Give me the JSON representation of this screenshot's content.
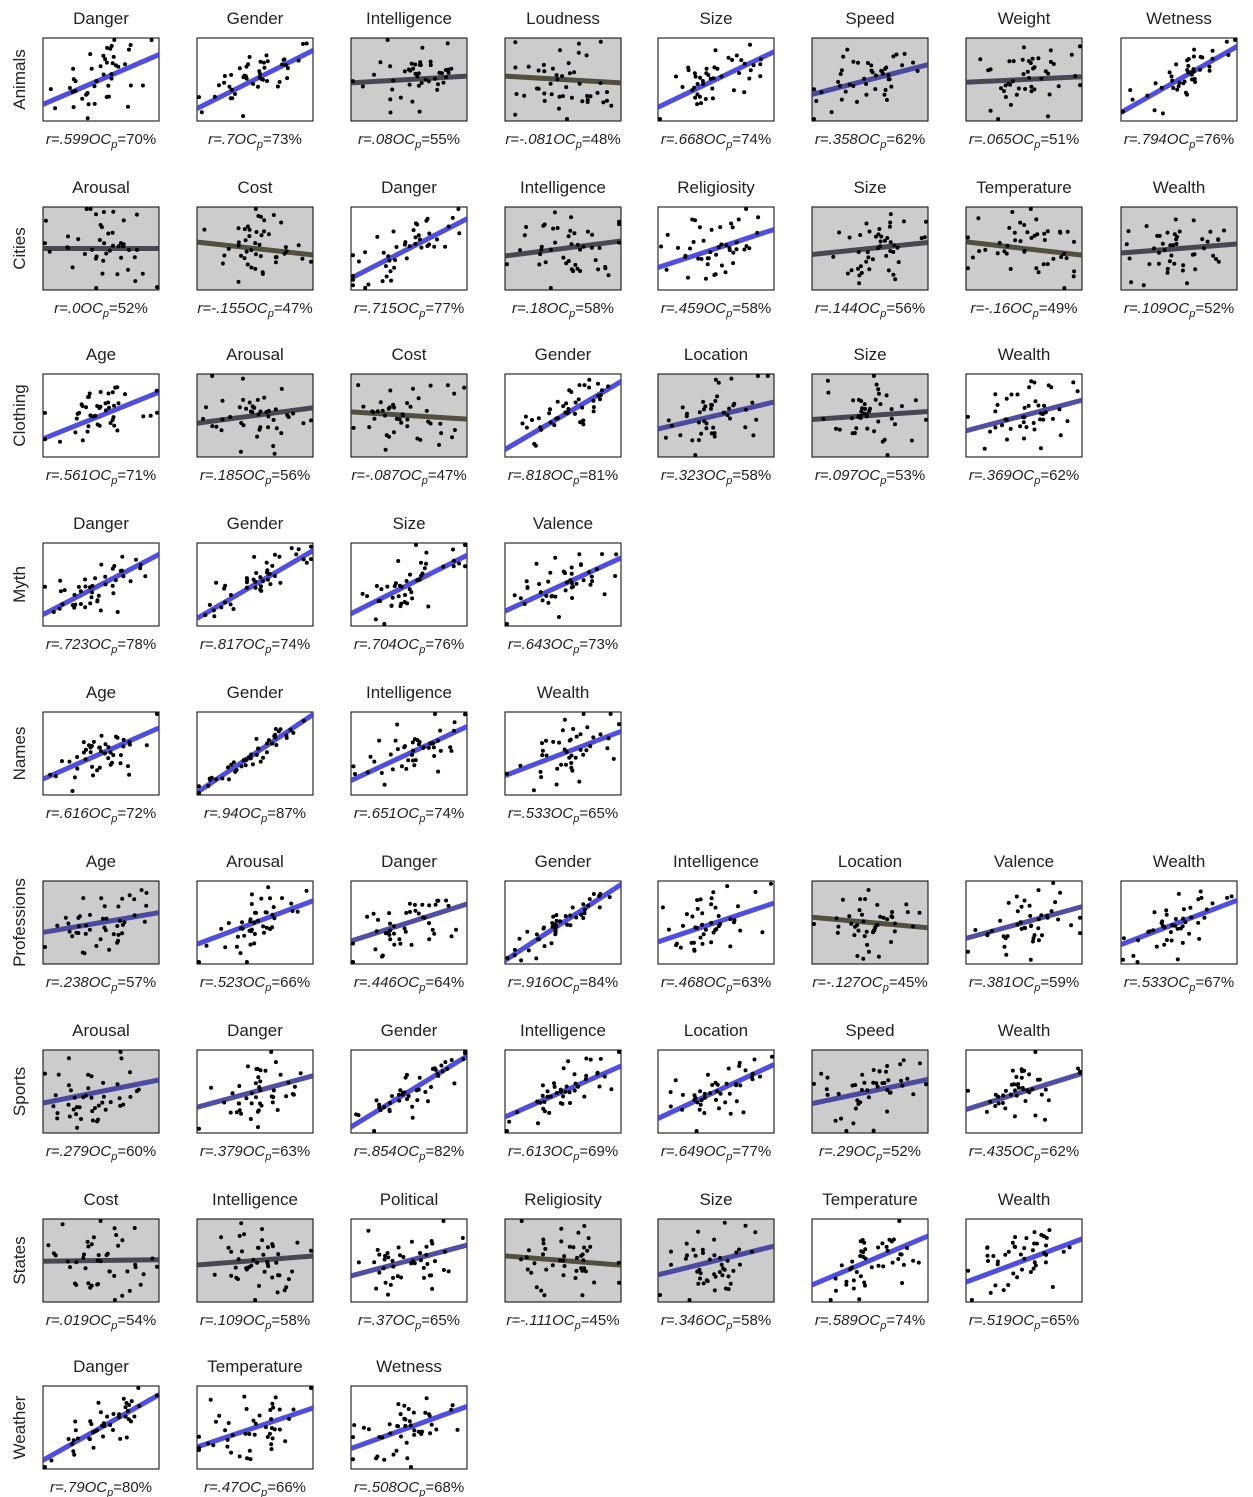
{
  "chart_data": {
    "type": "scatter",
    "rows": [
      {
        "domain": "Animals",
        "panels": [
          {
            "title": "Danger",
            "r": "r=.599",
            "oc": "OC",
            "oc_sub": "p",
            "oc_val": "=70%",
            "r_value": 0.599,
            "oc_percent": 70
          },
          {
            "title": "Gender",
            "r": "r=.7",
            "oc": "OC",
            "oc_sub": "p",
            "oc_val": "=73%",
            "r_value": 0.7,
            "oc_percent": 73
          },
          {
            "title": "Intelligence",
            "r": "r=.08",
            "oc": "OC",
            "oc_sub": "p",
            "oc_val": "=55%",
            "r_value": 0.08,
            "oc_percent": 55
          },
          {
            "title": "Loudness",
            "r": "r=-.081",
            "oc": "OC",
            "oc_sub": "p",
            "oc_val": "=48%",
            "r_value": -0.081,
            "oc_percent": 48
          },
          {
            "title": "Size",
            "r": "r=.668",
            "oc": "OC",
            "oc_sub": "p",
            "oc_val": "=74%",
            "r_value": 0.668,
            "oc_percent": 74
          },
          {
            "title": "Speed",
            "r": "r=.358",
            "oc": "OC",
            "oc_sub": "p",
            "oc_val": "=62%",
            "r_value": 0.358,
            "oc_percent": 62
          },
          {
            "title": "Weight",
            "r": "r=.065",
            "oc": "OC",
            "oc_sub": "p",
            "oc_val": "=51%",
            "r_value": 0.065,
            "oc_percent": 51
          },
          {
            "title": "Wetness",
            "r": "r=.794",
            "oc": "OC",
            "oc_sub": "p",
            "oc_val": "=76%",
            "r_value": 0.794,
            "oc_percent": 76
          }
        ]
      },
      {
        "domain": "Cities",
        "panels": [
          {
            "title": "Arousal",
            "r": "r=.0",
            "oc": "OC",
            "oc_sub": "p",
            "oc_val": "=52%",
            "r_value": 0.0,
            "oc_percent": 52
          },
          {
            "title": "Cost",
            "r": "r=-.155",
            "oc": "OC",
            "oc_sub": "p",
            "oc_val": "=47%",
            "r_value": -0.155,
            "oc_percent": 47
          },
          {
            "title": "Danger",
            "r": "r=.715",
            "oc": "OC",
            "oc_sub": "p",
            "oc_val": "=77%",
            "r_value": 0.715,
            "oc_percent": 77
          },
          {
            "title": "Intelligence",
            "r": "r=.18",
            "oc": "OC",
            "oc_sub": "p",
            "oc_val": "=58%",
            "r_value": 0.18,
            "oc_percent": 58
          },
          {
            "title": "Religiosity",
            "r": "r=.459",
            "oc": "OC",
            "oc_sub": "p",
            "oc_val": "=58%",
            "r_value": 0.459,
            "oc_percent": 58
          },
          {
            "title": "Size",
            "r": "r=.144",
            "oc": "OC",
            "oc_sub": "p",
            "oc_val": "=56%",
            "r_value": 0.144,
            "oc_percent": 56
          },
          {
            "title": "Temperature",
            "r": "r=-.16",
            "oc": "OC",
            "oc_sub": "p",
            "oc_val": "=49%",
            "r_value": -0.16,
            "oc_percent": 49
          },
          {
            "title": "Wealth",
            "r": "r=.109",
            "oc": "OC",
            "oc_sub": "p",
            "oc_val": "=52%",
            "r_value": 0.109,
            "oc_percent": 52
          }
        ]
      },
      {
        "domain": "Clothing",
        "panels": [
          {
            "title": "Age",
            "r": "r=.561",
            "oc": "OC",
            "oc_sub": "p",
            "oc_val": "=71%",
            "r_value": 0.561,
            "oc_percent": 71
          },
          {
            "title": "Arousal",
            "r": "r=.185",
            "oc": "OC",
            "oc_sub": "p",
            "oc_val": "=56%",
            "r_value": 0.185,
            "oc_percent": 56
          },
          {
            "title": "Cost",
            "r": "r=-.087",
            "oc": "OC",
            "oc_sub": "p",
            "oc_val": "=47%",
            "r_value": -0.087,
            "oc_percent": 47
          },
          {
            "title": "Gender",
            "r": "r=.818",
            "oc": "OC",
            "oc_sub": "p",
            "oc_val": "=81%",
            "r_value": 0.818,
            "oc_percent": 81
          },
          {
            "title": "Location",
            "r": "r=.323",
            "oc": "OC",
            "oc_sub": "p",
            "oc_val": "=58%",
            "r_value": 0.323,
            "oc_percent": 58
          },
          {
            "title": "Size",
            "r": "r=.097",
            "oc": "OC",
            "oc_sub": "p",
            "oc_val": "=53%",
            "r_value": 0.097,
            "oc_percent": 53
          },
          {
            "title": "Wealth",
            "r": "r=.369",
            "oc": "OC",
            "oc_sub": "p",
            "oc_val": "=62%",
            "r_value": 0.369,
            "oc_percent": 62
          }
        ]
      },
      {
        "domain": "Myth",
        "panels": [
          {
            "title": "Danger",
            "r": "r=.723",
            "oc": "OC",
            "oc_sub": "p",
            "oc_val": "=78%",
            "r_value": 0.723,
            "oc_percent": 78
          },
          {
            "title": "Gender",
            "r": "r=.817",
            "oc": "OC",
            "oc_sub": "p",
            "oc_val": "=74%",
            "r_value": 0.817,
            "oc_percent": 74
          },
          {
            "title": "Size",
            "r": "r=.704",
            "oc": "OC",
            "oc_sub": "p",
            "oc_val": "=76%",
            "r_value": 0.704,
            "oc_percent": 76
          },
          {
            "title": "Valence",
            "r": "r=.643",
            "oc": "OC",
            "oc_sub": "p",
            "oc_val": "=73%",
            "r_value": 0.643,
            "oc_percent": 73
          }
        ]
      },
      {
        "domain": "Names",
        "panels": [
          {
            "title": "Age",
            "r": "r=.616",
            "oc": "OC",
            "oc_sub": "p",
            "oc_val": "=72%",
            "r_value": 0.616,
            "oc_percent": 72
          },
          {
            "title": "Gender",
            "r": "r=.94",
            "oc": "OC",
            "oc_sub": "p",
            "oc_val": "=87%",
            "r_value": 0.94,
            "oc_percent": 87
          },
          {
            "title": "Intelligence",
            "r": "r=.651",
            "oc": "OC",
            "oc_sub": "p",
            "oc_val": "=74%",
            "r_value": 0.651,
            "oc_percent": 74
          },
          {
            "title": "Wealth",
            "r": "r=.533",
            "oc": "OC",
            "oc_sub": "p",
            "oc_val": "=65%",
            "r_value": 0.533,
            "oc_percent": 65
          }
        ]
      },
      {
        "domain": "Professions",
        "panels": [
          {
            "title": "Age",
            "r": "r=.238",
            "oc": "OC",
            "oc_sub": "p",
            "oc_val": "=57%",
            "r_value": 0.238,
            "oc_percent": 57
          },
          {
            "title": "Arousal",
            "r": "r=.523",
            "oc": "OC",
            "oc_sub": "p",
            "oc_val": "=66%",
            "r_value": 0.523,
            "oc_percent": 66
          },
          {
            "title": "Danger",
            "r": "r=.446",
            "oc": "OC",
            "oc_sub": "p",
            "oc_val": "=64%",
            "r_value": 0.446,
            "oc_percent": 64
          },
          {
            "title": "Gender",
            "r": "r=.916",
            "oc": "OC",
            "oc_sub": "p",
            "oc_val": "=84%",
            "r_value": 0.916,
            "oc_percent": 84
          },
          {
            "title": "Intelligence",
            "r": "r=.468",
            "oc": "OC",
            "oc_sub": "p",
            "oc_val": "=63%",
            "r_value": 0.468,
            "oc_percent": 63
          },
          {
            "title": "Location",
            "r": "r=-.127",
            "oc": "OC",
            "oc_sub": "p",
            "oc_val": "=45%",
            "r_value": -0.127,
            "oc_percent": 45
          },
          {
            "title": "Valence",
            "r": "r=.381",
            "oc": "OC",
            "oc_sub": "p",
            "oc_val": "=59%",
            "r_value": 0.381,
            "oc_percent": 59
          },
          {
            "title": "Wealth",
            "r": "r=.533",
            "oc": "OC",
            "oc_sub": "p",
            "oc_val": "=67%",
            "r_value": 0.533,
            "oc_percent": 67
          }
        ]
      },
      {
        "domain": "Sports",
        "panels": [
          {
            "title": "Arousal",
            "r": "r=.279",
            "oc": "OC",
            "oc_sub": "p",
            "oc_val": "=60%",
            "r_value": 0.279,
            "oc_percent": 60
          },
          {
            "title": "Danger",
            "r": "r=.379",
            "oc": "OC",
            "oc_sub": "p",
            "oc_val": "=63%",
            "r_value": 0.379,
            "oc_percent": 63
          },
          {
            "title": "Gender",
            "r": "r=.854",
            "oc": "OC",
            "oc_sub": "p",
            "oc_val": "=82%",
            "r_value": 0.854,
            "oc_percent": 82
          },
          {
            "title": "Intelligence",
            "r": "r=.613",
            "oc": "OC",
            "oc_sub": "p",
            "oc_val": "=69%",
            "r_value": 0.613,
            "oc_percent": 69
          },
          {
            "title": "Location",
            "r": "r=.649",
            "oc": "OC",
            "oc_sub": "p",
            "oc_val": "=77%",
            "r_value": 0.649,
            "oc_percent": 77
          },
          {
            "title": "Speed",
            "r": "r=.29",
            "oc": "OC",
            "oc_sub": "p",
            "oc_val": "=52%",
            "r_value": 0.29,
            "oc_percent": 52
          },
          {
            "title": "Wealth",
            "r": "r=.435",
            "oc": "OC",
            "oc_sub": "p",
            "oc_val": "=62%",
            "r_value": 0.435,
            "oc_percent": 62
          }
        ]
      },
      {
        "domain": "States",
        "panels": [
          {
            "title": "Cost",
            "r": "r=.019",
            "oc": "OC",
            "oc_sub": "p",
            "oc_val": "=54%",
            "r_value": 0.019,
            "oc_percent": 54
          },
          {
            "title": "Intelligence",
            "r": "r=.109",
            "oc": "OC",
            "oc_sub": "p",
            "oc_val": "=58%",
            "r_value": 0.109,
            "oc_percent": 58
          },
          {
            "title": "Political",
            "r": "r=.37",
            "oc": "OC",
            "oc_sub": "p",
            "oc_val": "=65%",
            "r_value": 0.37,
            "oc_percent": 65
          },
          {
            "title": "Religiosity",
            "r": "r=-.111",
            "oc": "OC",
            "oc_sub": "p",
            "oc_val": "=45%",
            "r_value": -0.111,
            "oc_percent": 45
          },
          {
            "title": "Size",
            "r": "r=.346",
            "oc": "OC",
            "oc_sub": "p",
            "oc_val": "=58%",
            "r_value": 0.346,
            "oc_percent": 58
          },
          {
            "title": "Temperature",
            "r": "r=.589",
            "oc": "OC",
            "oc_sub": "p",
            "oc_val": "=74%",
            "r_value": 0.589,
            "oc_percent": 74
          },
          {
            "title": "Wealth",
            "r": "r=.519",
            "oc": "OC",
            "oc_sub": "p",
            "oc_val": "=65%",
            "r_value": 0.519,
            "oc_percent": 65
          }
        ]
      },
      {
        "domain": "Weather",
        "panels": [
          {
            "title": "Danger",
            "r": "r=.79",
            "oc": "OC",
            "oc_sub": "p",
            "oc_val": "=80%",
            "r_value": 0.79,
            "oc_percent": 80
          },
          {
            "title": "Temperature",
            "r": "r=.47",
            "oc": "OC",
            "oc_sub": "p",
            "oc_val": "=66%",
            "r_value": 0.47,
            "oc_percent": 66
          },
          {
            "title": "Wetness",
            "r": "r=.508",
            "oc": "OC",
            "oc_sub": "p",
            "oc_val": "=68%",
            "r_value": 0.508,
            "oc_percent": 68
          }
        ]
      }
    ],
    "colors": {
      "significant_bg": "#ffffff",
      "nonsignificant_bg": "#cccccc",
      "strong_line": "#3b3bdc",
      "weak_line": "#3a3a46",
      "negative_line": "#44422f",
      "point": "#000000"
    }
  }
}
